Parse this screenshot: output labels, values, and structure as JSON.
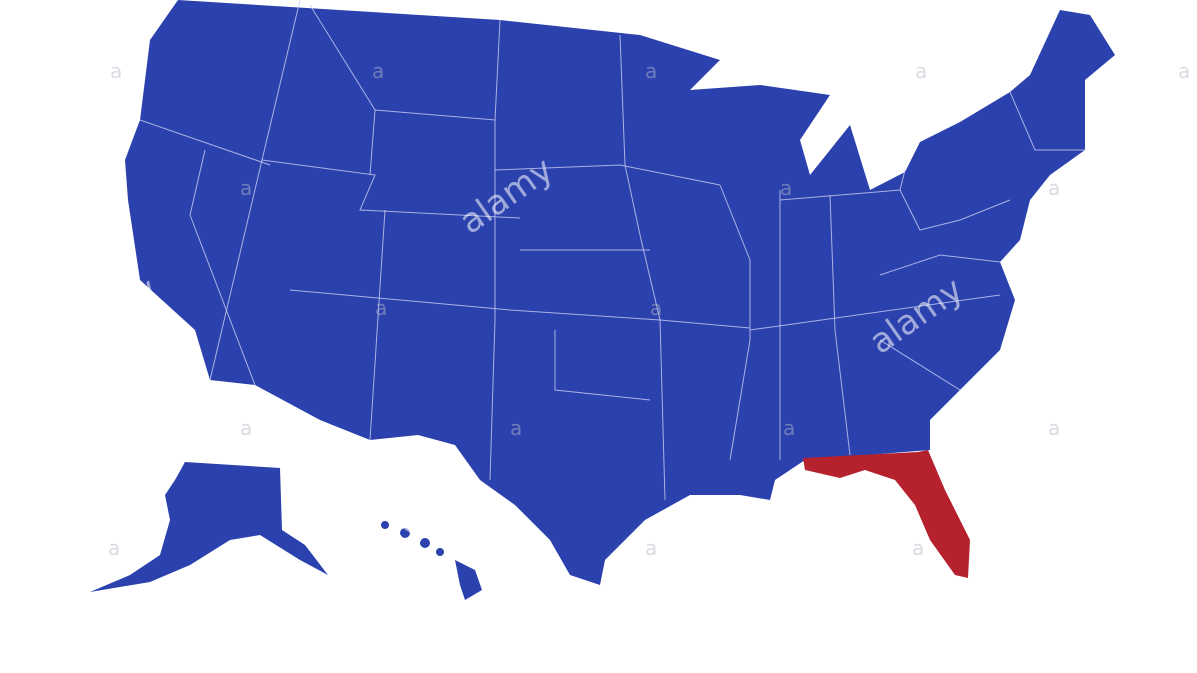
{
  "map": {
    "base_color": "#2b41ad",
    "highlight_color": "#b5212d",
    "border_color": "#c9d0f2",
    "highlighted_state": "Florida"
  },
  "watermark": {
    "brand": "alamy",
    "mark": "a"
  }
}
